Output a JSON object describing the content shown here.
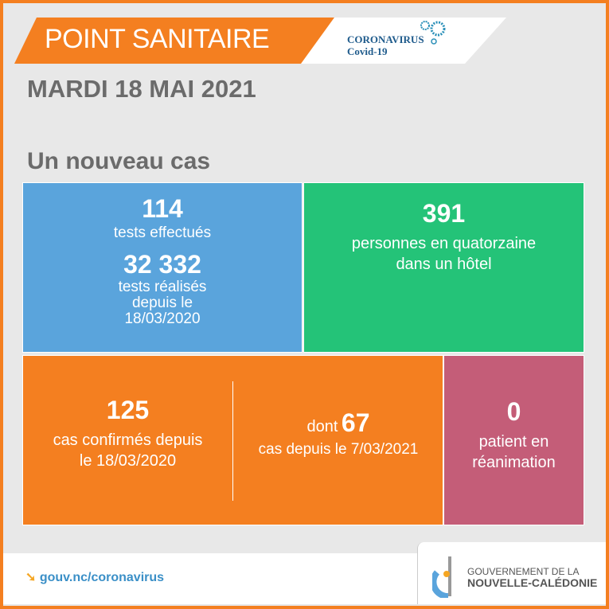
{
  "header": {
    "title": "POINT SANITAIRE",
    "logo_line1": "CORONAVIRUS",
    "logo_line2": "Covid-19"
  },
  "date": "MARDI 18 MAI 2021",
  "subtitle": "Un nouveau cas",
  "tests": {
    "daily_value": "114",
    "daily_label": "tests effectués",
    "total_value": "32 332",
    "total_label1": "tests réalisés",
    "total_label2": "depuis le",
    "total_label3": "18/03/2020"
  },
  "quatorzaine": {
    "value": "391",
    "label1": "personnes en quatorzaine",
    "label2": "dans un hôtel"
  },
  "cases": {
    "value": "125",
    "label1": "cas confirmés depuis",
    "label2": "le 18/03/2020",
    "dont_prefix": "dont",
    "dont_value": "67",
    "dont_label": "cas depuis le 7/03/2021"
  },
  "reanimation": {
    "value": "0",
    "label1": "patient en",
    "label2": "réanimation"
  },
  "footer": {
    "link": "gouv.nc/coronavirus",
    "gov_line1": "GOUVERNEMENT DE LA",
    "gov_line2": "NOUVELLE-CALÉDONIE"
  },
  "colors": {
    "orange": "#f47f20",
    "blue": "#5aa4dc",
    "green": "#24c378",
    "pink": "#c45d78"
  }
}
